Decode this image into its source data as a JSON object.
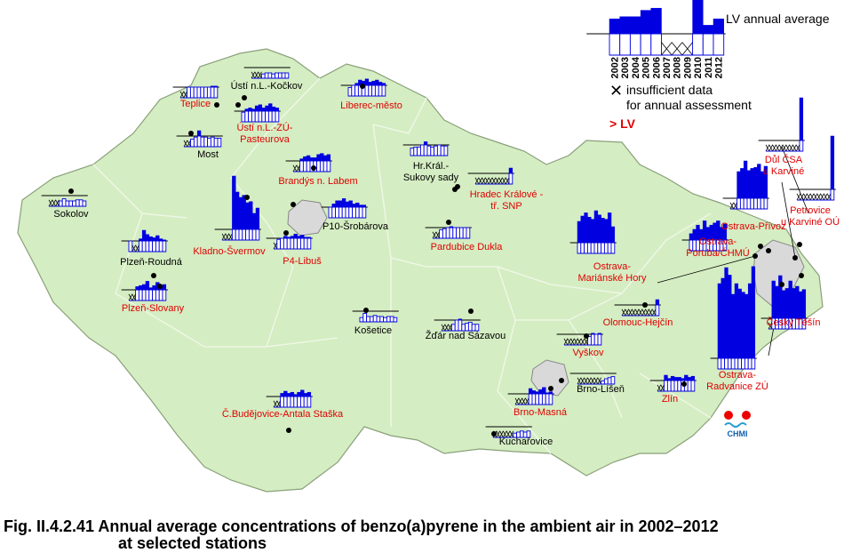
{
  "caption": [
    "Fig. II.4.2.41  Annual average concentrations of benzo(a)pyrene in the ambient air in 2002–2012",
    "at selected stations"
  ],
  "logo": "CHMI",
  "legend": {
    "title": "LV annual average",
    "years": [
      "2002",
      "2003",
      "2004",
      "2005",
      "2006",
      "2007",
      "2008",
      "2009",
      "2010",
      "2011",
      "2012"
    ],
    "values": [
      1.7,
      1.8,
      1.8,
      2.1,
      2.2,
      null,
      null,
      null,
      2.6,
      1.4,
      1.7
    ],
    "insufficient": [
      "insufficient data",
      "for annual assessment"
    ],
    "exceed": "> LV",
    "color": "#0000e0"
  },
  "stations": [
    {
      "name": [
        "Teplice"
      ],
      "color": "#e00000",
      "values": [
        null,
        null,
        1.0,
        1.0,
        1.0,
        1.0,
        1.0,
        1.0,
        1.0,
        1.1,
        1.1
      ]
    },
    {
      "name": [
        "Ústí n.L.-Kočkov"
      ],
      "color": "#000000",
      "values": [
        null,
        null,
        null,
        0.4,
        0.5,
        0.5,
        0.4,
        0.5,
        0.5,
        0.5,
        0.5
      ]
    },
    {
      "name": [
        "Ústí n.L.-ZÚ-",
        "Pasteurova"
      ],
      "color": "#e00000",
      "values": [
        0.9,
        1.2,
        1.3,
        1.2,
        1.5,
        1.6,
        1.3,
        1.5,
        1.7,
        1.4,
        1.3
      ]
    },
    {
      "name": [
        "Liberec-město"
      ],
      "color": "#e00000",
      "values": [
        0.8,
        1.0,
        1.2,
        1.5,
        1.4,
        1.6,
        1.3,
        1.4,
        1.5,
        1.3,
        1.2
      ]
    },
    {
      "name": [
        "Most"
      ],
      "color": "#000000",
      "values": [
        null,
        null,
        0.7,
        0.9,
        1.5,
        0.9,
        0.9,
        0.8,
        0.9,
        0.8,
        0.8
      ]
    },
    {
      "name": [
        "Sokolov"
      ],
      "color": "#000000",
      "values": [
        null,
        null,
        null,
        0.5,
        0.7,
        0.5,
        0.5,
        0.5,
        0.6,
        0.6,
        0.5
      ]
    },
    {
      "name": [
        "Brandýs n. Labem"
      ],
      "color": "#e00000",
      "values": [
        null,
        null,
        1.2,
        1.4,
        1.5,
        1.3,
        1.3,
        1.6,
        1.7,
        1.5,
        1.6
      ]
    },
    {
      "name": [
        "Hr.Král.-",
        "Sukovy sady"
      ],
      "color": "#000000",
      "values": [
        0.7,
        0.8,
        0.8,
        1.0,
        1.3,
        0.9,
        0.8,
        0.9,
        1.0,
        0.9,
        0.9
      ]
    },
    {
      "name": [
        "Hradec Králové -",
        "tř. SNP"
      ],
      "color": "#e00000",
      "values": [
        null,
        null,
        null,
        null,
        null,
        null,
        null,
        null,
        null,
        null,
        1.5
      ]
    },
    {
      "name": [
        "Kladno-Švermov"
      ],
      "color": "#e00000",
      "values": [
        null,
        null,
        null,
        6.0,
        4.5,
        4.0,
        4.2,
        3.5,
        3.6,
        2.5,
        3.0
      ]
    },
    {
      "name": [
        "P10-Šrobárova"
      ],
      "color": "#000000",
      "values": [
        1.0,
        1.3,
        1.6,
        1.6,
        1.8,
        1.5,
        1.6,
        1.3,
        1.4,
        1.2,
        1.2
      ]
    },
    {
      "name": [
        "P4-Libuš"
      ],
      "color": "#e00000",
      "values": [
        null,
        0.9,
        1.0,
        1.2,
        1.1,
        1.2,
        1.4,
        1.2,
        1.3,
        1.1,
        1.1
      ]
    },
    {
      "name": [
        "Pardubice Dukla"
      ],
      "color": "#e00000",
      "values": [
        null,
        null,
        0.8,
        0.9,
        1.0,
        1.1,
        1.0,
        1.0,
        1.0,
        1.0,
        1.0
      ]
    },
    {
      "name": [
        "Plzeň-Roudná"
      ],
      "color": "#000000",
      "values": [
        1.0,
        null,
        null,
        1.2,
        2.0,
        1.6,
        1.4,
        1.3,
        1.5,
        1.2,
        1.1
      ]
    },
    {
      "name": [
        "Plzeň-Slovany"
      ],
      "color": "#e00000",
      "values": [
        null,
        null,
        1.3,
        1.4,
        1.5,
        1.8,
        1.2,
        1.4,
        1.7,
        1.3,
        1.5
      ]
    },
    {
      "name": [
        "Košetice"
      ],
      "color": "#000000",
      "values": [
        0.4,
        0.8,
        0.5,
        0.5,
        0.6,
        0.5,
        0.5,
        0.4,
        0.5,
        0.5,
        0.4
      ]
    },
    {
      "name": [
        "Žďár nad Sázavou"
      ],
      "color": "#000000",
      "values": [
        null,
        null,
        null,
        0.6,
        1.0,
        1.1,
        0.6,
        0.7,
        0.8,
        0.6,
        0.6
      ]
    },
    {
      "name": [
        "Č.Budějovice-Antala Staška"
      ],
      "color": "#e00000",
      "values": [
        null,
        null,
        1.3,
        1.5,
        1.3,
        1.4,
        1.2,
        1.4,
        1.6,
        1.3,
        1.4
      ]
    },
    {
      "name": [
        "Vyškov"
      ],
      "color": "#e00000",
      "values": [
        null,
        null,
        null,
        null,
        null,
        null,
        null,
        0.8,
        1.1,
        1.0,
        1.1
      ]
    },
    {
      "name": [
        "Brno-Líšeň"
      ],
      "color": "#000000",
      "values": [
        null,
        null,
        null,
        null,
        null,
        null,
        null,
        0.3,
        0.5,
        0.6,
        0.7
      ]
    },
    {
      "name": [
        "Brno-Masná"
      ],
      "color": "#e00000",
      "values": [
        null,
        null,
        null,
        null,
        1.5,
        1.3,
        1.2,
        1.4,
        1.6,
        1.1,
        1.2
      ]
    },
    {
      "name": [
        "Kuchařovice"
      ],
      "color": "#000000",
      "values": [
        null,
        null,
        null,
        null,
        null,
        null,
        0.4,
        0.5,
        0.6,
        0.5,
        0.6
      ]
    },
    {
      "name": [
        "Zlín"
      ],
      "color": "#e00000",
      "values": [
        null,
        null,
        1.5,
        1.2,
        1.4,
        1.3,
        1.3,
        1.2,
        1.5,
        1.3,
        1.4
      ]
    },
    {
      "name": [
        "Olomouc-Hejčín"
      ],
      "color": "#e00000",
      "values": [
        null,
        null,
        null,
        null,
        null,
        null,
        null,
        null,
        null,
        null,
        1.5
      ]
    },
    {
      "name": [
        "Ostrava-",
        "Mariánské Hory"
      ],
      "color": "#e00000",
      "values": [
        3.0,
        3.5,
        3.8,
        3.4,
        3.2,
        4.0,
        3.6,
        3.3,
        3.2,
        3.8,
        2.5
      ]
    },
    {
      "name": [
        "Ostrava-",
        "Poruba/ČHMÚ"
      ],
      "color": "#e00000",
      "values": [
        1.6,
        2.0,
        2.4,
        2.0,
        2.8,
        2.2,
        2.4,
        2.6,
        2.8,
        2.2,
        2.5
      ]
    },
    {
      "name": [
        "Ostrava-Přívoz"
      ],
      "color": "#e00000",
      "values": [
        null,
        null,
        3.5,
        3.8,
        4.5,
        3.6,
        3.8,
        3.9,
        4.2,
        3.5,
        4.0
      ]
    },
    {
      "name": [
        "Důl ČSA",
        "u Karviné"
      ],
      "color": "#e00000",
      "values": [
        null,
        null,
        null,
        null,
        null,
        null,
        null,
        null,
        null,
        null,
        5.0
      ]
    },
    {
      "name": [
        "Petrovice",
        "u Karviné OÚ"
      ],
      "color": "#e00000",
      "values": [
        null,
        null,
        null,
        null,
        null,
        null,
        null,
        null,
        null,
        null,
        6.0
      ]
    },
    {
      "name": [
        "Český Těšín"
      ],
      "color": "#e00000",
      "values": [
        null,
        4.5,
        4.0,
        5.0,
        3.6,
        3.8,
        4.5,
        3.8,
        4.0,
        3.5,
        3.7
      ]
    },
    {
      "name": [
        "Ostrava-",
        "Radvanice ZÚ"
      ],
      "color": "#e00000",
      "values": [
        8.0,
        8.5,
        9.5,
        8.8,
        7.0,
        8.0,
        7.5,
        7.2,
        7.0,
        8.0,
        9.6
      ]
    }
  ]
}
